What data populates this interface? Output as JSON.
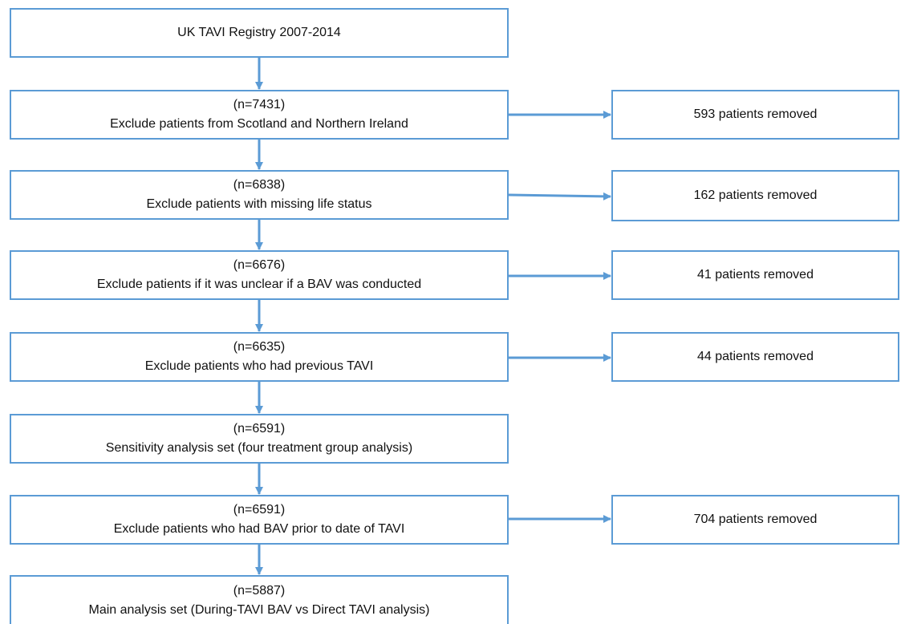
{
  "steps": [
    {
      "text": "UK TAVI Registry 2007-2014"
    },
    {
      "count": "(n=7431)",
      "text": "Exclude patients from Scotland and Northern Ireland"
    },
    {
      "count": "(n=6838)",
      "text": "Exclude patients with missing life status"
    },
    {
      "count": "(n=6676)",
      "text": "Exclude patients if it was unclear if a BAV was conducted"
    },
    {
      "count": "(n=6635)",
      "text": "Exclude patients who had previous TAVI"
    },
    {
      "count": "(n=6591)",
      "text": "Sensitivity analysis set (four treatment group analysis)"
    },
    {
      "count": "(n=6591)",
      "text": "Exclude patients who had BAV prior to date of TAVI"
    },
    {
      "count": "(n=5887)",
      "text": "Main analysis set (During-TAVI BAV vs Direct TAVI analysis)"
    }
  ],
  "removed": [
    "593 patients removed",
    "162 patients removed",
    "41 patients removed",
    "44 patients removed",
    "704 patients removed"
  ]
}
